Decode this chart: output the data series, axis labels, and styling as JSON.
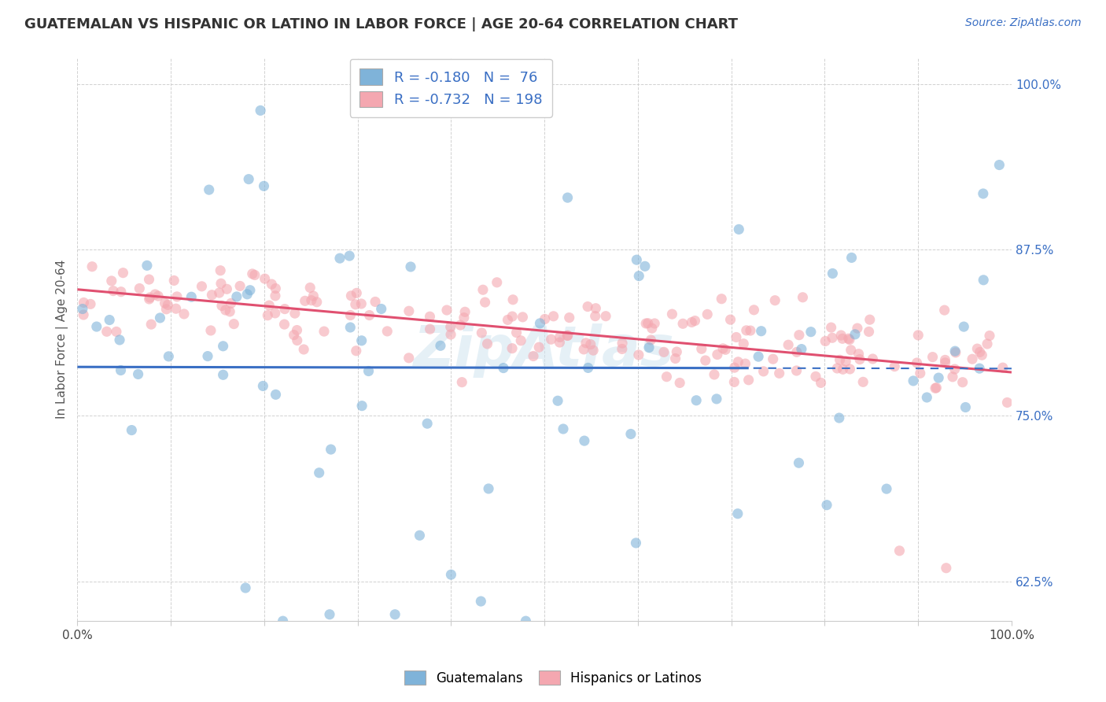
{
  "title": "GUATEMALAN VS HISPANIC OR LATINO IN LABOR FORCE | AGE 20-64 CORRELATION CHART",
  "source": "Source: ZipAtlas.com",
  "ylabel": "In Labor Force | Age 20-64",
  "xlabel": "",
  "bg_color": "#ffffff",
  "grid_color": "#cccccc",
  "watermark": "ZipAtlas",
  "blue_color": "#7fb3d9",
  "pink_color": "#f4a7b0",
  "blue_line_color": "#3a6fc4",
  "pink_line_color": "#e05070",
  "R_blue": -0.18,
  "N_blue": 76,
  "R_pink": -0.732,
  "N_pink": 198,
  "xlim": [
    0.0,
    1.0
  ],
  "ylim": [
    0.595,
    1.02
  ],
  "xticks_show": [
    0.0,
    1.0
  ],
  "xticks_grid": [
    0.0,
    0.1,
    0.2,
    0.3,
    0.4,
    0.5,
    0.6,
    0.7,
    0.8,
    0.9,
    1.0
  ],
  "yticks": [
    0.625,
    0.75,
    0.875,
    1.0
  ],
  "blue_seed": 42,
  "pink_seed": 99,
  "title_fontsize": 13,
  "source_fontsize": 10,
  "tick_fontsize": 11
}
